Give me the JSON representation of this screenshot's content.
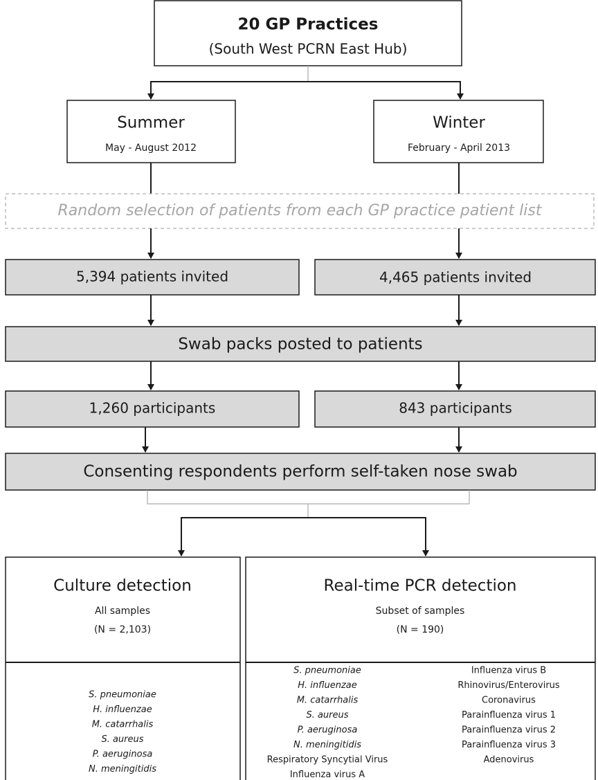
{
  "top": {
    "title": "20 GP Practices",
    "subtitle": "(South West PCRN East Hub)"
  },
  "summer": {
    "title": "Summer",
    "dates": "May - August 2012"
  },
  "winter": {
    "title": "Winter",
    "dates": "February - April 2013"
  },
  "selection": "Random selection of patients from each GP practice patient list",
  "summer_invited": "5,394 patients invited",
  "winter_invited": "4,465 patients invited",
  "swab_packs": "Swab packs posted to patients",
  "summer_participants": "1,260 participants",
  "winter_participants": "843 participants",
  "consenting": "Consenting respondents perform self-taken nose swab",
  "culture": {
    "title": "Culture detection",
    "subtitle": "All samples",
    "n": "(N = 2,103)",
    "items": [
      "S. pneumoniae",
      "H. influenzae",
      "M. catarrhalis",
      "S. aureus",
      "P. aeruginosa",
      "N. meningitidis"
    ]
  },
  "pcr": {
    "title": "Real-time PCR detection",
    "subtitle": "Subset of samples",
    "n": "(N = 190)",
    "bacteria": [
      "S. pneumoniae",
      "H. influenzae",
      "M. catarrhalis",
      "S. aureus",
      "P. aeruginosa",
      "N. meningitidis"
    ],
    "viruses_left": [
      "Respiratory Syncytial Virus",
      "Influenza virus A"
    ],
    "viruses_right": [
      "Influenza virus B",
      "Rhinovirus/Enterovirus",
      "Coronavirus",
      "Parainfluenza virus 1",
      "Parainfluenza virus 2",
      "Parainfluenza virus 3",
      "Adenovirus"
    ]
  }
}
